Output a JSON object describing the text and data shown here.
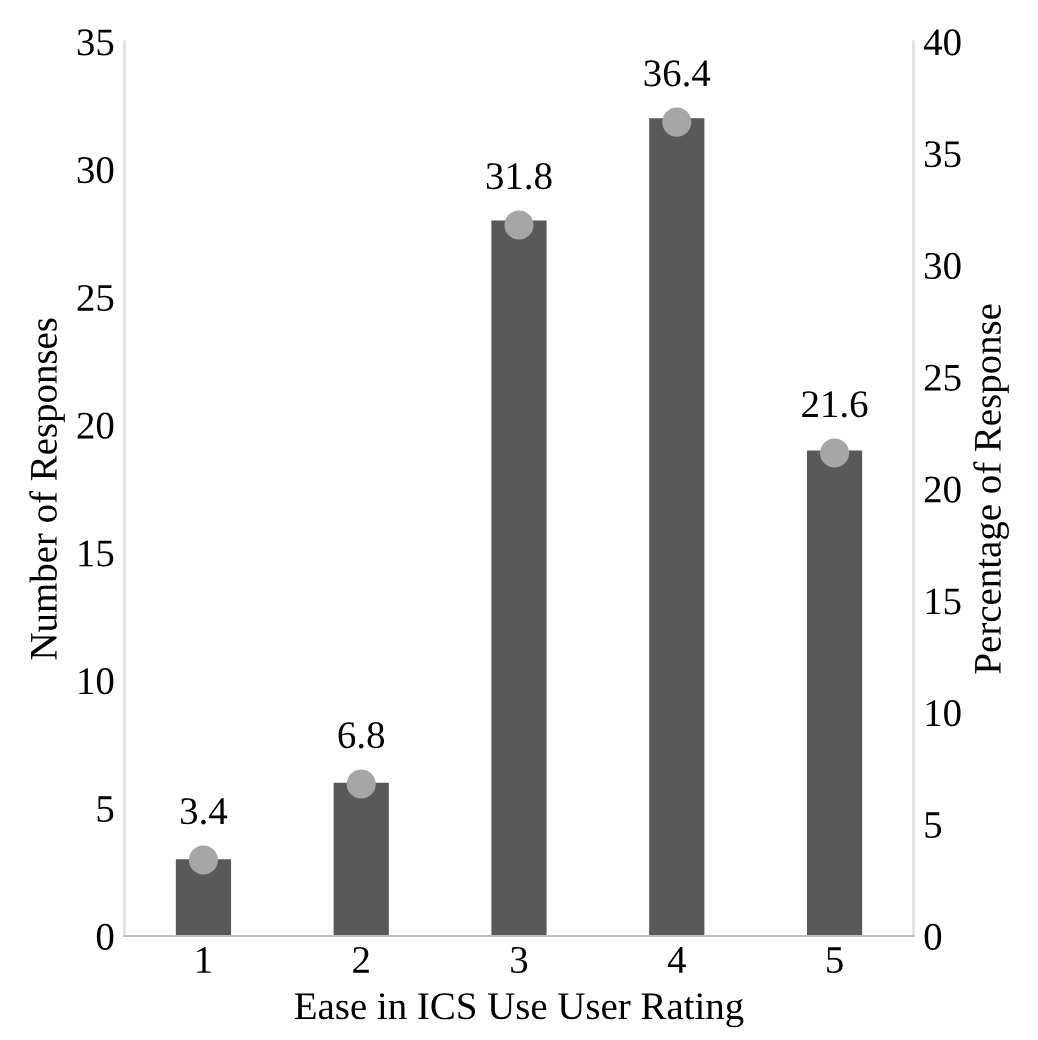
{
  "chart_data": {
    "type": "bar",
    "xlabel": "Ease in ICS Use User Rating",
    "ylabel": "Number of Responses",
    "y2label": "Percentage of Response",
    "categories": [
      "1",
      "2",
      "3",
      "4",
      "5"
    ],
    "series": [
      {
        "color": "#595959",
        "values": [
          3,
          6,
          28,
          32,
          19
        ]
      },
      {
        "type": "scatter",
        "axis": "y2",
        "color": "#a6a6a6",
        "values": [
          3.4,
          6.8,
          31.8,
          36.4,
          21.6
        ],
        "value_labels": [
          "3.4",
          "6.8",
          "31.8",
          "36.4",
          "21.6"
        ]
      }
    ],
    "ylim": [
      0,
      35
    ],
    "yticks": [
      0,
      5,
      10,
      15,
      20,
      25,
      30,
      35
    ],
    "y2lim": [
      0,
      40
    ],
    "y2ticks": [
      0,
      5,
      10,
      15,
      20,
      25,
      30,
      35,
      40
    ],
    "grid": false,
    "marker": "circle"
  }
}
